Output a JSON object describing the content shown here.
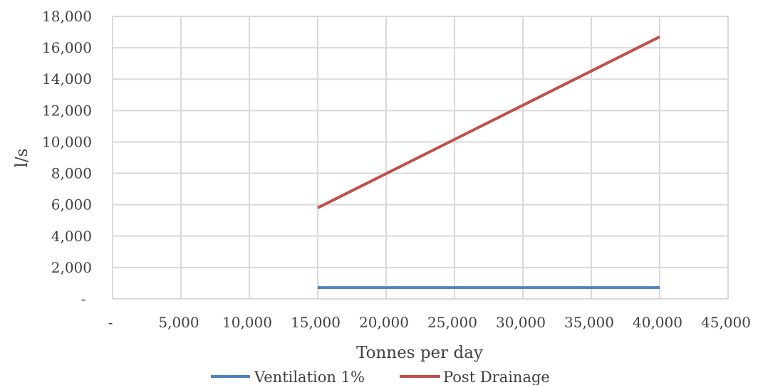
{
  "chart_data": {
    "type": "line",
    "xlabel": "Tonnes per day",
    "ylabel": "l/s",
    "xlim": [
      0,
      45000
    ],
    "ylim": [
      0,
      18000
    ],
    "x_ticks": [
      {
        "value": 0,
        "label": "-"
      },
      {
        "value": 5000,
        "label": "5,000"
      },
      {
        "value": 10000,
        "label": "10,000"
      },
      {
        "value": 15000,
        "label": "15,000"
      },
      {
        "value": 20000,
        "label": "20,000"
      },
      {
        "value": 25000,
        "label": "25,000"
      },
      {
        "value": 30000,
        "label": "30,000"
      },
      {
        "value": 35000,
        "label": "35,000"
      },
      {
        "value": 40000,
        "label": "40,000"
      },
      {
        "value": 45000,
        "label": "45,000"
      }
    ],
    "y_ticks": [
      {
        "value": 0,
        "label": "-"
      },
      {
        "value": 2000,
        "label": "2,000"
      },
      {
        "value": 4000,
        "label": "4,000"
      },
      {
        "value": 6000,
        "label": "6,000"
      },
      {
        "value": 8000,
        "label": "8,000"
      },
      {
        "value": 10000,
        "label": "10,000"
      },
      {
        "value": 12000,
        "label": "12,000"
      },
      {
        "value": 14000,
        "label": "14,000"
      },
      {
        "value": 16000,
        "label": "16,000"
      },
      {
        "value": 18000,
        "label": "18,000"
      }
    ],
    "grid": true,
    "legend_position": "bottom",
    "series": [
      {
        "name": "Ventilation 1%",
        "color": "#4f81bd",
        "x": [
          15000,
          40000
        ],
        "y": [
          720,
          720
        ]
      },
      {
        "name": "Post Drainage",
        "color": "#c0504d",
        "x": [
          15000,
          40000
        ],
        "y": [
          5800,
          16700
        ]
      }
    ]
  }
}
